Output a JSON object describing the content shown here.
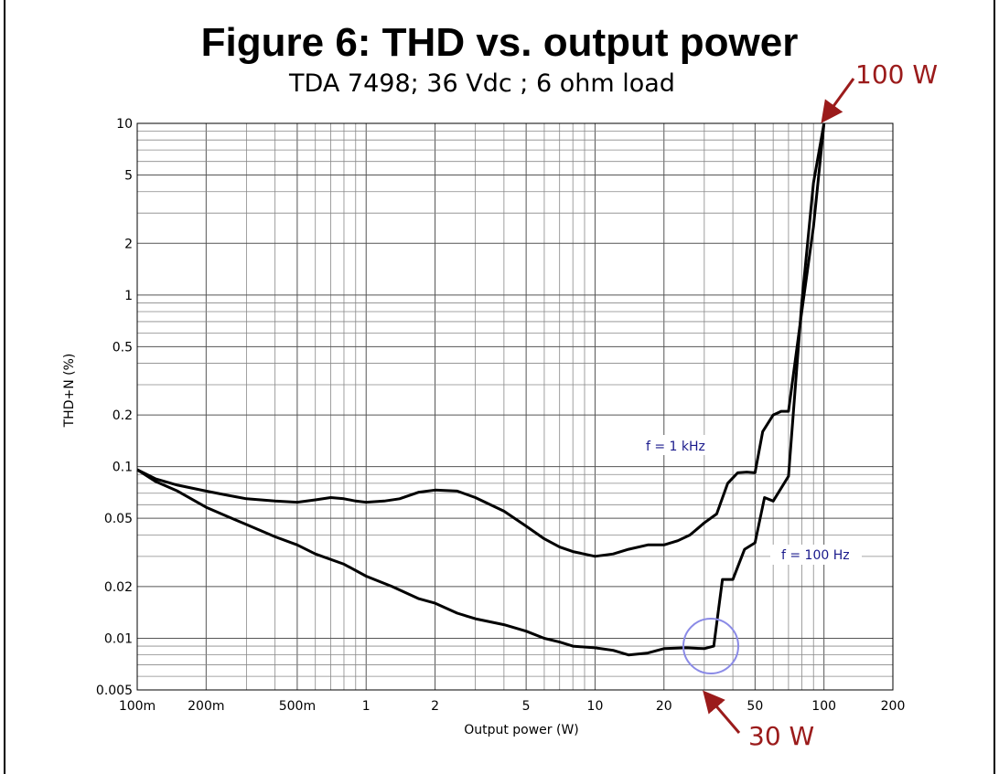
{
  "chart_data": {
    "type": "line",
    "title": "Figure 6: THD vs. output power",
    "subtitle": "TDA 7498; 36 Vdc ; 6 ohm load",
    "xlabel": "Output power (W)",
    "ylabel": "THD+N (%)",
    "xscale": "log",
    "yscale": "log",
    "xlim": [
      0.1,
      200
    ],
    "ylim": [
      0.005,
      10
    ],
    "grid": true,
    "xticks": [
      {
        "value": 0.1,
        "label": "100m"
      },
      {
        "value": 0.2,
        "label": "200m"
      },
      {
        "value": 0.5,
        "label": "500m"
      },
      {
        "value": 1,
        "label": "1"
      },
      {
        "value": 2,
        "label": "2"
      },
      {
        "value": 5,
        "label": "5"
      },
      {
        "value": 10,
        "label": "10"
      },
      {
        "value": 20,
        "label": "20"
      },
      {
        "value": 50,
        "label": "50"
      },
      {
        "value": 100,
        "label": "100"
      },
      {
        "value": 200,
        "label": "200"
      }
    ],
    "yticks": [
      {
        "value": 0.005,
        "label": "0.005"
      },
      {
        "value": 0.01,
        "label": "0.01"
      },
      {
        "value": 0.02,
        "label": "0.02"
      },
      {
        "value": 0.05,
        "label": "0.05"
      },
      {
        "value": 0.1,
        "label": "0.1"
      },
      {
        "value": 0.2,
        "label": "0.2"
      },
      {
        "value": 0.5,
        "label": "0.5"
      },
      {
        "value": 1,
        "label": "1"
      },
      {
        "value": 2,
        "label": "2"
      },
      {
        "value": 5,
        "label": "5"
      },
      {
        "value": 10,
        "label": "10"
      }
    ],
    "series": [
      {
        "name": "f = 1 kHz",
        "color": "#000000",
        "points": [
          [
            0.1,
            0.096
          ],
          [
            0.12,
            0.085
          ],
          [
            0.15,
            0.078
          ],
          [
            0.2,
            0.072
          ],
          [
            0.25,
            0.068
          ],
          [
            0.3,
            0.065
          ],
          [
            0.4,
            0.063
          ],
          [
            0.5,
            0.062
          ],
          [
            0.6,
            0.064
          ],
          [
            0.7,
            0.066
          ],
          [
            0.8,
            0.065
          ],
          [
            0.9,
            0.063
          ],
          [
            1.0,
            0.062
          ],
          [
            1.2,
            0.063
          ],
          [
            1.4,
            0.065
          ],
          [
            1.7,
            0.071
          ],
          [
            2.0,
            0.073
          ],
          [
            2.5,
            0.072
          ],
          [
            3.0,
            0.066
          ],
          [
            4.0,
            0.055
          ],
          [
            5.0,
            0.045
          ],
          [
            6.0,
            0.038
          ],
          [
            7.0,
            0.034
          ],
          [
            8.0,
            0.032
          ],
          [
            10.0,
            0.03
          ],
          [
            12.0,
            0.031
          ],
          [
            14.0,
            0.033
          ],
          [
            17.0,
            0.035
          ],
          [
            20.0,
            0.035
          ],
          [
            23.0,
            0.037
          ],
          [
            26.0,
            0.04
          ],
          [
            30.0,
            0.047
          ],
          [
            34.0,
            0.053
          ],
          [
            38.0,
            0.08
          ],
          [
            42.0,
            0.092
          ],
          [
            46.0,
            0.093
          ],
          [
            50.0,
            0.092
          ],
          [
            54.0,
            0.16
          ],
          [
            60.0,
            0.2
          ],
          [
            65.0,
            0.21
          ],
          [
            70.0,
            0.21
          ],
          [
            80.0,
            0.8
          ],
          [
            90.0,
            2.5
          ],
          [
            100.0,
            10.0
          ]
        ]
      },
      {
        "name": "f = 100 Hz",
        "color": "#000000",
        "points": [
          [
            0.1,
            0.096
          ],
          [
            0.12,
            0.082
          ],
          [
            0.15,
            0.072
          ],
          [
            0.2,
            0.058
          ],
          [
            0.25,
            0.051
          ],
          [
            0.3,
            0.046
          ],
          [
            0.4,
            0.039
          ],
          [
            0.5,
            0.035
          ],
          [
            0.6,
            0.031
          ],
          [
            0.8,
            0.027
          ],
          [
            1.0,
            0.023
          ],
          [
            1.3,
            0.02
          ],
          [
            1.7,
            0.017
          ],
          [
            2.0,
            0.016
          ],
          [
            2.5,
            0.014
          ],
          [
            3.0,
            0.013
          ],
          [
            4.0,
            0.012
          ],
          [
            5.0,
            0.011
          ],
          [
            6.0,
            0.01
          ],
          [
            7.0,
            0.0095
          ],
          [
            8.0,
            0.009
          ],
          [
            10.0,
            0.0088
          ],
          [
            12.0,
            0.0085
          ],
          [
            14.0,
            0.008
          ],
          [
            17.0,
            0.0082
          ],
          [
            20.0,
            0.0087
          ],
          [
            25.0,
            0.0088
          ],
          [
            30.0,
            0.0087
          ],
          [
            33.0,
            0.009
          ],
          [
            36.0,
            0.022
          ],
          [
            40.0,
            0.022
          ],
          [
            45.0,
            0.033
          ],
          [
            50.0,
            0.036
          ],
          [
            55.0,
            0.066
          ],
          [
            60.0,
            0.063
          ],
          [
            70.0,
            0.088
          ],
          [
            80.0,
            0.9
          ],
          [
            90.0,
            4.5
          ],
          [
            100.0,
            10.0
          ]
        ]
      }
    ],
    "series_labels": [
      {
        "text": "f = 1 kHz"
      },
      {
        "text": "f = 100 Hz"
      }
    ],
    "annotations": [
      {
        "text": "100 W",
        "color": "#9b1b1b"
      },
      {
        "text": "30 W",
        "color": "#9b1b1b"
      }
    ]
  }
}
